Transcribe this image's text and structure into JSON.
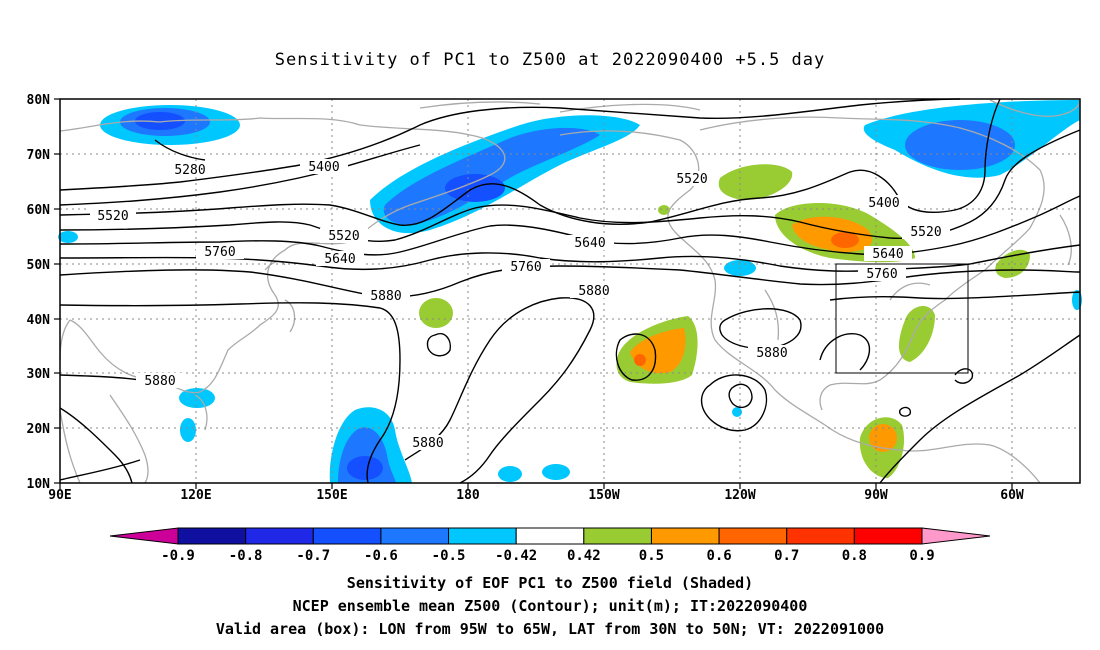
{
  "title": "Sensitivity of PC1 to Z500 at 2022090400 +5.5 day",
  "captions": [
    "Sensitivity of EOF PC1 to Z500 field (Shaded)",
    "NCEP ensemble mean Z500 (Contour); unit(m); IT:2022090400",
    "Valid area (box): LON from 95W to 65W, LAT from 30N to 50N; VT: 2022091000"
  ],
  "lat_labels": [
    "80N",
    "70N",
    "60N",
    "50N",
    "40N",
    "30N",
    "20N",
    "10N"
  ],
  "lon_labels": [
    "90E",
    "120E",
    "150E",
    "180",
    "150W",
    "120W",
    "90W",
    "60W"
  ],
  "contour_labels": [
    "5280",
    "5400",
    "5520",
    "5520",
    "5640",
    "5760",
    "5880",
    "5880",
    "5880",
    "5880",
    "5520",
    "5640",
    "5760",
    "5520",
    "5400",
    "5640",
    "5760",
    "5880"
  ],
  "colorbar": {
    "labels": [
      "-0.9",
      "-0.8",
      "-0.7",
      "-0.6",
      "-0.5",
      "-0.42",
      "0.42",
      "0.5",
      "0.6",
      "0.7",
      "0.8",
      "0.9"
    ],
    "colors": [
      "#1010a0",
      "#1e28e6",
      "#1450ff",
      "#1e78ff",
      "#00c8ff",
      "#ffffff",
      "#99cc33",
      "#ff9900",
      "#ff6600",
      "#ff3300",
      "#ff0000"
    ],
    "end_low": "#cc0099",
    "end_high": "#ff99cc"
  },
  "valid_box": {
    "lon_range": [
      "95W",
      "65W"
    ],
    "lat_range": [
      "30N",
      "50N"
    ]
  }
}
